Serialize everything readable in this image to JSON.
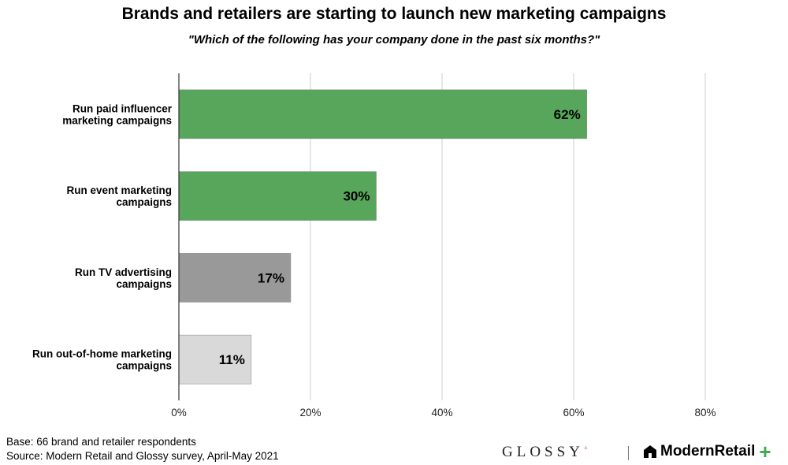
{
  "title": "Brands and retailers are starting to launch new marketing campaigns",
  "subtitle": "\"Which of the following has your company done in the past six months?\"",
  "chart_data": {
    "type": "bar",
    "orientation": "horizontal",
    "categories": [
      [
        "Run paid influencer",
        "marketing campaigns"
      ],
      [
        "Run event marketing",
        "campaigns"
      ],
      [
        "Run TV advertising",
        "campaigns"
      ],
      [
        "Run out-of-home marketing",
        "campaigns"
      ]
    ],
    "values": [
      62,
      30,
      17,
      11
    ],
    "value_labels": [
      "62%",
      "30%",
      "17%",
      "11%"
    ],
    "bar_colors": [
      "#57a65b",
      "#57a65b",
      "#999999",
      "#d9d9d9"
    ],
    "xlim": [
      0,
      80
    ],
    "xticks": [
      0,
      20,
      40,
      60,
      80
    ],
    "xtick_labels": [
      "0%",
      "20%",
      "40%",
      "60%",
      "80%"
    ],
    "grid": true
  },
  "footer": {
    "base": "Base: 66 brand and retailer respondents",
    "source": "Source: Modern Retail and Glossy survey, April-May 2021"
  },
  "logos": {
    "glossy": "GLOSSY",
    "glossy_mark": "+",
    "modern_retail": "ModernRetail",
    "modern_retail_mark": "+"
  }
}
